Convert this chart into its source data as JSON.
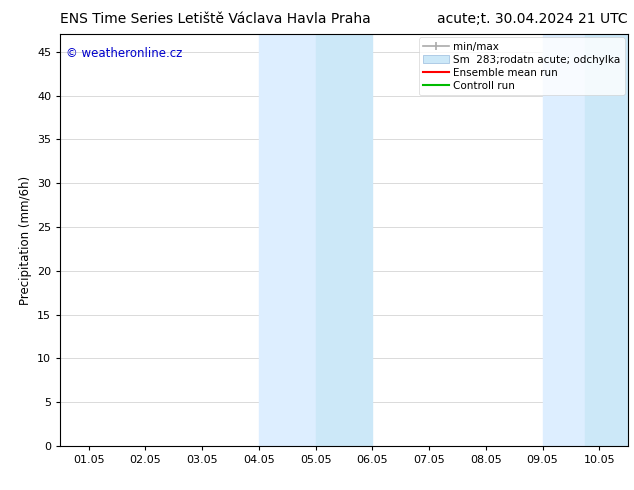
{
  "title_left": "ENS Time Series Letiště Václava Havla Praha",
  "title_right": "acute;t. 30.04.2024 21 UTC",
  "ylabel": "Precipitation (mm/6h)",
  "watermark": "© weatheronline.cz",
  "watermark_color": "#0000cc",
  "x_tick_labels": [
    "01.05",
    "02.05",
    "03.05",
    "04.05",
    "05.05",
    "06.05",
    "07.05",
    "08.05",
    "09.05",
    "10.05"
  ],
  "x_min": -0.5,
  "x_max": 9.5,
  "y_min": 0,
  "y_max": 47,
  "y_ticks": [
    0,
    5,
    10,
    15,
    20,
    25,
    30,
    35,
    40,
    45
  ],
  "band1_x1": 3.0,
  "band1_xa": 4.0,
  "band1_x2": 5.0,
  "band2_x1": 8.0,
  "band2_xa": 8.75,
  "band2_x2": 9.5,
  "band_color_light": "#ddeeff",
  "band_color_dark": "#cce8f8",
  "background_color": "#ffffff",
  "plot_bg_color": "#ffffff",
  "grid_color": "#cccccc",
  "title_fontsize": 10,
  "axis_fontsize": 8.5,
  "tick_fontsize": 8,
  "legend_fontsize": 7.5,
  "watermark_fontsize": 8.5
}
